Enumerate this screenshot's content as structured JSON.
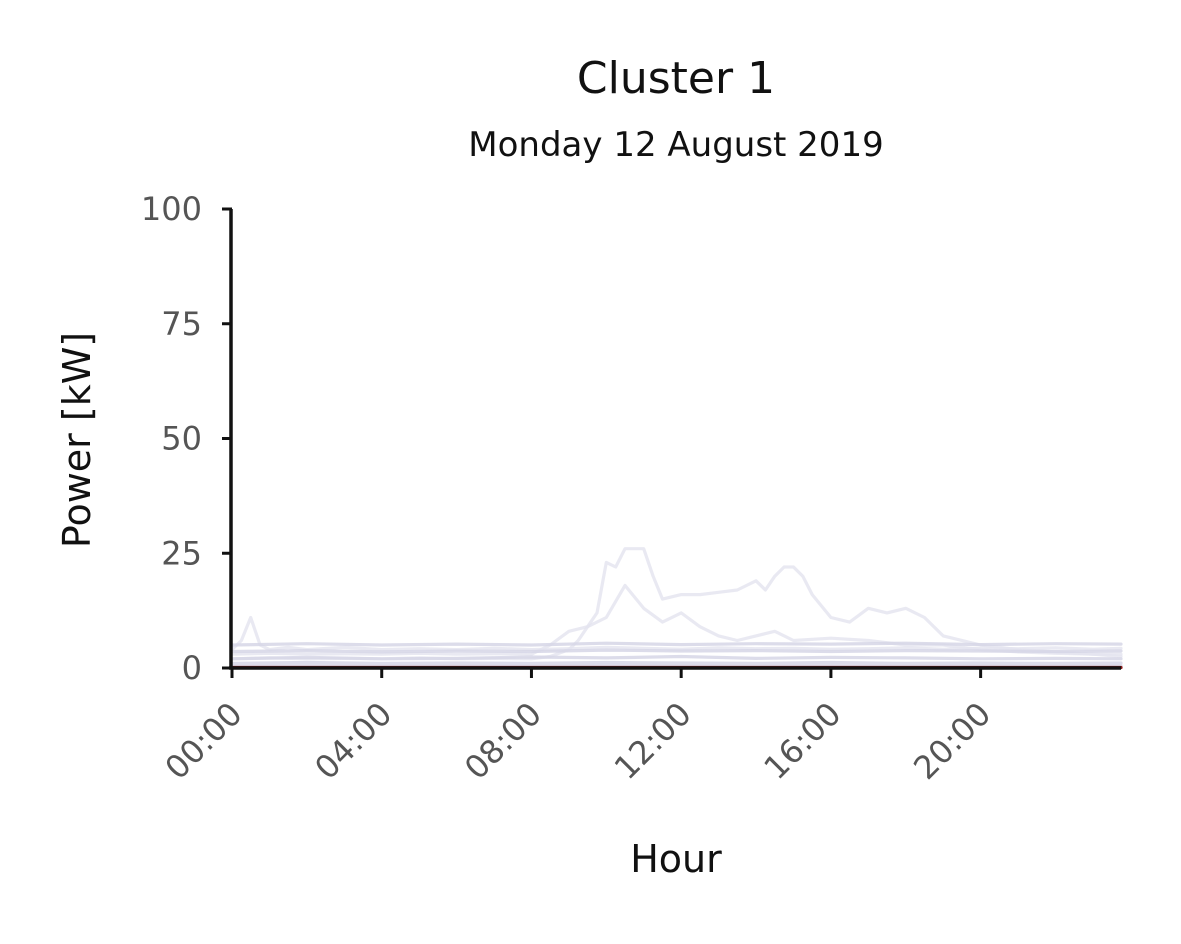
{
  "chart_data": {
    "type": "line",
    "title": "Cluster 1",
    "subtitle": "Monday 12 August 2019",
    "xlabel": "Hour",
    "ylabel": "Power [kW]",
    "xlim": [
      0,
      23.75
    ],
    "ylim": [
      0,
      100
    ],
    "xticks": [
      "00:00",
      "04:00",
      "08:00",
      "12:00",
      "16:00",
      "20:00"
    ],
    "xtick_values": [
      0,
      4,
      8,
      12,
      16,
      20
    ],
    "yticks": [
      0,
      25,
      50,
      75,
      100
    ],
    "grid": false,
    "legend": "none",
    "colors": {
      "members": "#d6d6e6",
      "peak_members": "#e4e4ef",
      "centroid": "#8b1a1a",
      "axis": "#111111"
    },
    "series": [
      {
        "x": [
          0,
          0.25,
          0.5,
          0.75,
          1,
          1.5,
          2,
          3,
          4,
          5,
          6,
          7,
          8,
          9,
          10,
          11,
          12,
          13,
          14,
          15,
          16,
          17,
          18,
          19,
          20,
          21,
          22,
          23,
          23.75
        ],
        "values": [
          4,
          6,
          11,
          5,
          4,
          4.5,
          4,
          4.5,
          4,
          4.2,
          4,
          4.3,
          4,
          4.2,
          4.5,
          4.3,
          4.1,
          4.4,
          4.2,
          4.3,
          4.1,
          4.2,
          4.4,
          4.1,
          4.3,
          4.2,
          4.4,
          4.1,
          4.3
        ]
      },
      {
        "x": [
          0,
          1,
          2,
          3,
          4,
          5,
          6,
          7,
          8,
          8.5,
          9,
          9.5,
          10,
          10.5,
          11,
          11.5,
          12,
          12.5,
          13,
          13.5,
          14,
          14.5,
          15,
          16,
          17,
          18,
          19,
          20,
          21,
          22,
          23,
          23.75
        ],
        "values": [
          3,
          3.2,
          3,
          3.1,
          3,
          3.2,
          3,
          3.1,
          3,
          5,
          8,
          9,
          11,
          18,
          13,
          10,
          12,
          9,
          7,
          6,
          7,
          8,
          6,
          6.5,
          6,
          5,
          5,
          4,
          3.5,
          3.2,
          3,
          3
        ]
      },
      {
        "x": [
          0,
          1,
          2,
          3,
          4,
          5,
          6,
          7,
          8,
          8.5,
          9,
          9.25,
          9.5,
          9.75,
          10,
          10.25,
          10.5,
          11,
          11.25,
          11.5,
          12,
          12.5,
          13,
          13.5,
          14,
          14.25,
          14.5,
          14.75,
          15,
          15.25,
          15.5,
          16,
          16.5,
          17,
          17.5,
          18,
          18.5,
          19,
          20,
          21,
          22,
          23,
          23.75
        ],
        "values": [
          2,
          2.2,
          2,
          2.1,
          2,
          2.2,
          2,
          2.1,
          2,
          2.5,
          4,
          6,
          9,
          12,
          23,
          22,
          26,
          26,
          20,
          15,
          16,
          16,
          16.5,
          17,
          19,
          17,
          20,
          22,
          22,
          20,
          16,
          11,
          10,
          13,
          12,
          13,
          11,
          7,
          5,
          4,
          3.5,
          3,
          2.5
        ]
      },
      {
        "x": [
          0,
          2,
          4,
          6,
          8,
          10,
          12,
          14,
          16,
          18,
          20,
          22,
          23.75
        ],
        "values": [
          5,
          5.3,
          5,
          5.2,
          5,
          5.4,
          5.1,
          5.3,
          5.2,
          5.4,
          5.1,
          5.3,
          5.2
        ]
      },
      {
        "x": [
          0,
          2,
          4,
          6,
          8,
          10,
          12,
          14,
          16,
          18,
          20,
          22,
          23.75
        ],
        "values": [
          2,
          2.3,
          2,
          2.1,
          2.4,
          2.2,
          2.5,
          2.1,
          2.3,
          2.2,
          2,
          2.1,
          2
        ]
      },
      {
        "x": [
          0,
          2,
          4,
          6,
          8,
          10,
          12,
          14,
          16,
          18,
          20,
          22,
          23.75
        ],
        "values": [
          1,
          1.2,
          1,
          1.1,
          1,
          1.2,
          1.1,
          1,
          1.2,
          1,
          1.1,
          1,
          1.1
        ]
      },
      {
        "x": [
          0,
          2,
          4,
          6,
          8,
          10,
          12,
          14,
          16,
          18,
          20,
          22,
          23.75
        ],
        "values": [
          3.6,
          3.8,
          3.5,
          3.7,
          3.6,
          3.9,
          3.7,
          3.8,
          3.6,
          3.8,
          3.7,
          3.6,
          3.7
        ]
      },
      {
        "x": [
          0,
          2,
          4,
          6,
          8,
          10,
          12,
          14,
          16,
          18,
          20,
          22,
          23.75
        ],
        "values": [
          0.4,
          0.5,
          0.4,
          0.5,
          0.4,
          0.6,
          0.5,
          0.4,
          0.5,
          0.4,
          0.5,
          0.4,
          0.5
        ]
      },
      {
        "x": [
          0,
          23.75
        ],
        "values": [
          0.1,
          0.1
        ],
        "role": "centroid"
      }
    ]
  }
}
